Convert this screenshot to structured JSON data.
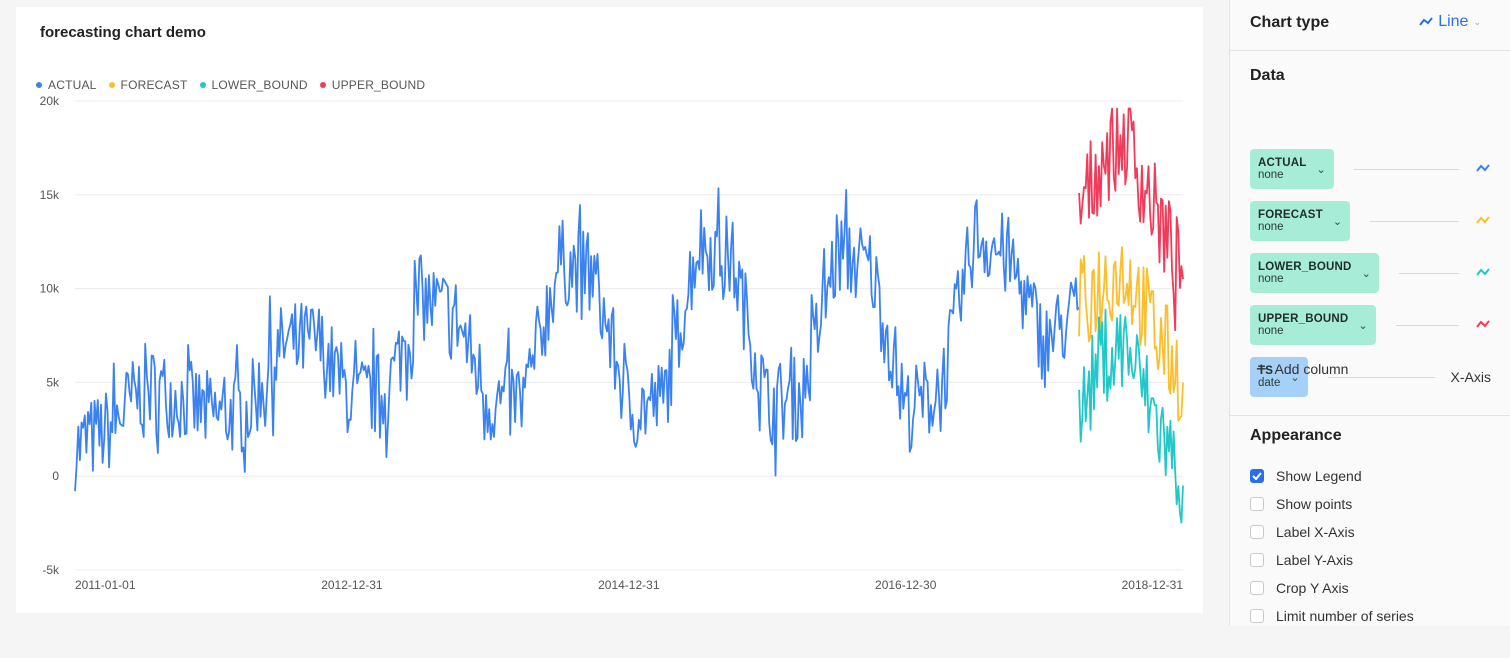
{
  "chart": {
    "title": "forecasting chart demo",
    "legend": [
      {
        "label": "ACTUAL",
        "color": "#3b82f0"
      },
      {
        "label": "FORECAST",
        "color": "#fbbf2e"
      },
      {
        "label": "LOWER_BOUND",
        "color": "#22c7c7"
      },
      {
        "label": "UPPER_BOUND",
        "color": "#f03b5a"
      }
    ]
  },
  "chart_data": {
    "type": "line",
    "title": "forecasting chart demo",
    "xlabel": "",
    "ylabel": "",
    "x_ticks": [
      "2011-01-01",
      "2012-12-31",
      "2014-12-31",
      "2016-12-30",
      "2018-12-31"
    ],
    "y_ticks": [
      "20k",
      "15k",
      "10k",
      "5k",
      "0",
      "-5k"
    ],
    "ylim": [
      -5000,
      20000
    ],
    "xlim": [
      "2011-01-01",
      "2018-12-31"
    ],
    "grid": true,
    "legend_position": "top-left",
    "series": [
      {
        "name": "ACTUAL",
        "color": "#3b82f0",
        "x": [
          "2011-01-01",
          "2011-04-01",
          "2011-07-01",
          "2011-10-01",
          "2012-01-01",
          "2012-04-01",
          "2012-07-01",
          "2012-10-01",
          "2013-01-01",
          "2013-04-01",
          "2013-07-01",
          "2013-10-01",
          "2014-01-01",
          "2014-04-01",
          "2014-07-01",
          "2014-10-01",
          "2015-01-01",
          "2015-04-01",
          "2015-07-01",
          "2015-10-01",
          "2016-01-01",
          "2016-04-01",
          "2016-07-01",
          "2016-10-01",
          "2017-01-01",
          "2017-04-01",
          "2017-07-01",
          "2017-10-01",
          "2018-01-01",
          "2018-04-01"
        ],
        "y": [
          1500,
          2500,
          4800,
          4200,
          3200,
          3500,
          7000,
          7200,
          4000,
          4500,
          9500,
          8500,
          3800,
          4200,
          11500,
          10500,
          3500,
          4000,
          12500,
          11500,
          3800,
          4200,
          12000,
          11000,
          3500,
          4500,
          13000,
          11500,
          7000,
          9000
        ]
      },
      {
        "name": "FORECAST",
        "color": "#fbbf2e",
        "x": [
          "2018-04-01",
          "2018-06-01",
          "2018-08-01",
          "2018-10-01",
          "2018-12-31"
        ],
        "y": [
          9000,
          10500,
          11000,
          8500,
          5000
        ]
      },
      {
        "name": "LOWER_BOUND",
        "color": "#22c7c7",
        "x": [
          "2018-04-01",
          "2018-06-01",
          "2018-08-01",
          "2018-10-01",
          "2018-12-31"
        ],
        "y": [
          3000,
          6500,
          7000,
          4000,
          -500
        ]
      },
      {
        "name": "UPPER_BOUND",
        "color": "#f03b5a",
        "x": [
          "2018-04-01",
          "2018-06-01",
          "2018-08-01",
          "2018-10-01",
          "2018-12-31"
        ],
        "y": [
          14000,
          17000,
          18000,
          15000,
          10500
        ]
      }
    ]
  },
  "panel": {
    "chart_type_label": "Chart type",
    "chart_type_value": "Line",
    "data_title": "Data",
    "columns": [
      {
        "name": "ACTUAL",
        "agg": "none",
        "icon_color": "#3b82f0",
        "kind": "series"
      },
      {
        "name": "FORECAST",
        "agg": "none",
        "icon_color": "#fbbf2e",
        "kind": "series"
      },
      {
        "name": "LOWER_BOUND",
        "agg": "none",
        "icon_color": "#22c7c7",
        "kind": "series"
      },
      {
        "name": "UPPER_BOUND",
        "agg": "none",
        "icon_color": "#f03b5a",
        "kind": "series"
      },
      {
        "name": "TS",
        "agg": "date",
        "axis": "X-Axis",
        "kind": "axis"
      }
    ],
    "add_column": "Add column",
    "appearance_title": "Appearance",
    "options": [
      {
        "label": "Show Legend",
        "checked": true
      },
      {
        "label": "Show points",
        "checked": false
      },
      {
        "label": "Label X-Axis",
        "checked": false
      },
      {
        "label": "Label Y-Axis",
        "checked": false
      },
      {
        "label": "Crop Y Axis",
        "checked": false
      },
      {
        "label": "Limit number of series",
        "checked": false
      }
    ]
  }
}
